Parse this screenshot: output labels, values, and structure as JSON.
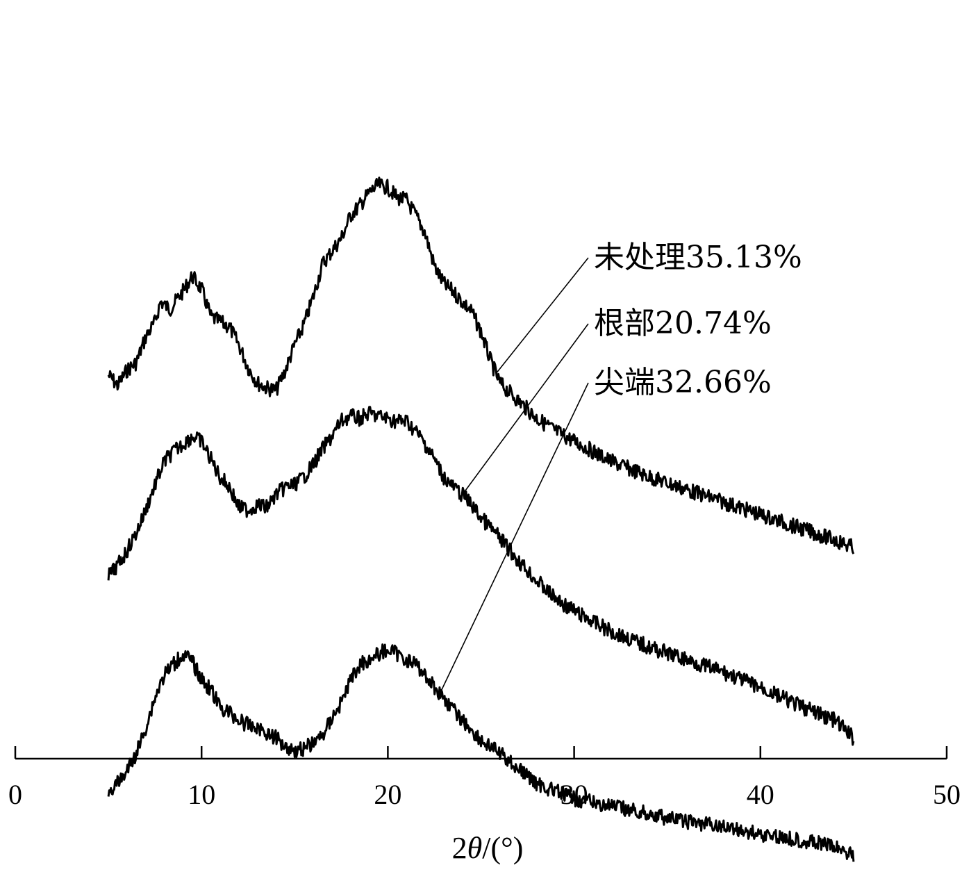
{
  "chart_data": {
    "type": "line",
    "xlabel_prefix": "2",
    "xlabel_theta": "θ",
    "xlabel_suffix": "/(°)",
    "xlim": [
      0,
      50
    ],
    "x_ticks": [
      "0",
      "10",
      "20",
      "30",
      "40",
      "50"
    ],
    "y_axis_visible": false,
    "grid": false,
    "series": [
      {
        "name": "未处理35.13%",
        "x": [
          5,
          5.5,
          6,
          6.5,
          7,
          7.5,
          7.8,
          8.3,
          9,
          9.5,
          10,
          10.5,
          11,
          11.5,
          12,
          12.5,
          13,
          13.5,
          14,
          14.5,
          15,
          15.5,
          16,
          16.5,
          17,
          17.5,
          18,
          18.5,
          19,
          19.5,
          20,
          20.5,
          21,
          21.5,
          22,
          22.5,
          23,
          23.5,
          24,
          24.5,
          25,
          25.5,
          26,
          27,
          28,
          29,
          30,
          32,
          34,
          36,
          38,
          40,
          42,
          44,
          45
        ],
        "y": [
          630,
          610,
          640,
          655,
          705,
          735,
          775,
          760,
          795,
          825,
          800,
          745,
          735,
          725,
          690,
          645,
          615,
          605,
          600,
          640,
          690,
          730,
          785,
          850,
          875,
          900,
          945,
          965,
          990,
          1005,
          1000,
          980,
          975,
          945,
          910,
          845,
          810,
          795,
          775,
          755,
          715,
          660,
          615,
          580,
          545,
          520,
          500,
          460,
          430,
          405,
          380,
          355,
          330,
          305,
          290
        ]
      },
      {
        "name": "根部20.74%",
        "x": [
          5,
          5.5,
          6,
          6.5,
          7,
          7.5,
          8,
          8.5,
          9,
          9.5,
          10,
          10.5,
          11,
          11.5,
          12,
          12.5,
          13,
          13.5,
          14,
          14.5,
          15,
          15.5,
          16,
          16.5,
          17,
          17.5,
          18,
          18.5,
          19,
          19.5,
          20,
          20.5,
          21,
          21.5,
          22,
          22.5,
          23,
          23.5,
          24,
          24.5,
          25,
          25.5,
          26,
          27,
          28,
          29,
          30,
          32,
          34,
          36,
          38,
          40,
          42,
          44,
          45
        ],
        "y": [
          440,
          460,
          490,
          525,
          570,
          620,
          665,
          685,
          700,
          715,
          705,
          670,
          635,
          615,
          575,
          570,
          580,
          575,
          600,
          615,
          620,
          635,
          660,
          690,
          715,
          745,
          755,
          750,
          760,
          755,
          750,
          745,
          745,
          725,
          700,
          670,
          635,
          615,
          600,
          580,
          555,
          535,
          515,
          470,
          430,
          395,
          370,
          330,
          300,
          275,
          250,
          220,
          185,
          155,
          120
        ]
      },
      {
        "name": "尖端32.66%",
        "x": [
          5,
          5.3,
          5.5,
          6,
          6.5,
          7,
          7.5,
          8,
          8.5,
          9,
          9.5,
          10,
          10.5,
          11,
          11.5,
          12,
          12.5,
          13,
          13.5,
          14,
          14.5,
          15,
          15.5,
          16,
          16.5,
          17,
          17.5,
          18,
          18.5,
          19,
          19.5,
          20,
          20.5,
          21,
          21.5,
          22,
          22.5,
          23,
          23.5,
          24,
          25,
          26,
          27,
          28,
          29,
          30,
          32,
          34,
          36,
          38,
          40,
          42,
          44,
          45
        ],
        "y": [
          120,
          135,
          140,
          165,
          200,
          250,
          310,
          355,
          375,
          395,
          380,
          345,
          325,
          290,
          280,
          265,
          255,
          250,
          240,
          230,
          215,
          205,
          210,
          220,
          235,
          270,
          300,
          345,
          375,
          385,
          395,
          405,
          395,
          385,
          375,
          355,
          330,
          310,
          285,
          265,
          225,
          200,
          170,
          140,
          125,
          110,
          95,
          80,
          65,
          55,
          40,
          30,
          15,
          0
        ]
      }
    ],
    "annotations": [
      {
        "series": "未处理35.13%",
        "at_x": 25.8,
        "text": "未处理35.13%"
      },
      {
        "series": "根部20.74%",
        "at_x": 24.0,
        "text": "根部20.74%"
      },
      {
        "series": "尖端32.66%",
        "at_x": 22.8,
        "text": "尖端32.66%"
      }
    ]
  }
}
